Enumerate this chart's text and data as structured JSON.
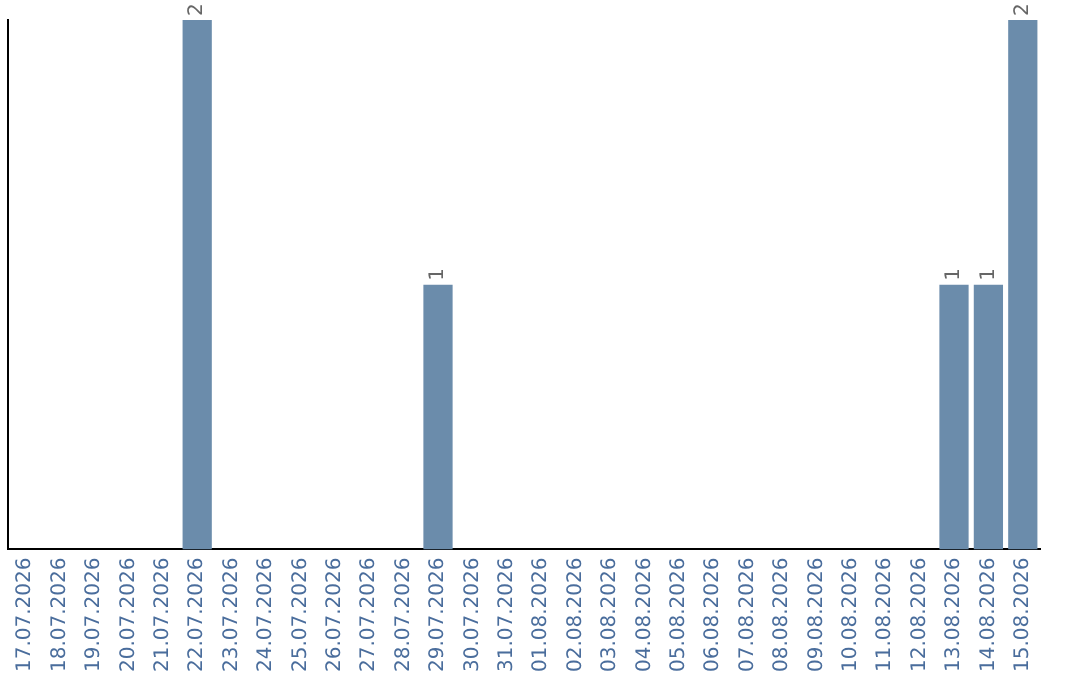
{
  "chart_data": {
    "type": "bar",
    "categories": [
      "17.07.2026",
      "18.07.2026",
      "19.07.2026",
      "20.07.2026",
      "21.07.2026",
      "22.07.2026",
      "23.07.2026",
      "24.07.2026",
      "25.07.2026",
      "26.07.2026",
      "27.07.2026",
      "28.07.2026",
      "29.07.2026",
      "30.07.2026",
      "31.07.2026",
      "01.08.2026",
      "02.08.2026",
      "03.08.2026",
      "04.08.2026",
      "05.08.2026",
      "06.08.2026",
      "07.08.2026",
      "08.08.2026",
      "09.08.2026",
      "10.08.2026",
      "11.08.2026",
      "12.08.2026",
      "13.08.2026",
      "14.08.2026",
      "15.08.2026"
    ],
    "values": [
      0,
      0,
      0,
      0,
      0,
      2,
      0,
      0,
      0,
      0,
      0,
      0,
      1,
      0,
      0,
      0,
      0,
      0,
      0,
      0,
      0,
      0,
      0,
      0,
      0,
      0,
      0,
      1,
      1,
      2
    ],
    "value_labels": [
      null,
      null,
      null,
      null,
      null,
      "2",
      null,
      null,
      null,
      null,
      null,
      null,
      "1",
      null,
      null,
      null,
      null,
      null,
      null,
      null,
      null,
      null,
      null,
      null,
      null,
      null,
      null,
      "1",
      "1",
      "2"
    ],
    "color": "#6b8cab",
    "tick_labels": "x",
    "grid": false,
    "legend": false
  }
}
